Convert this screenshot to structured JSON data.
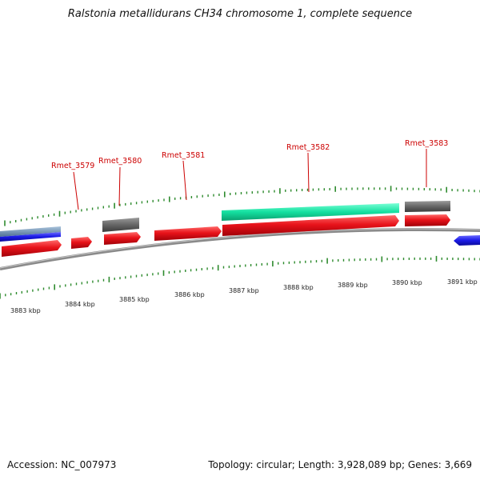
{
  "title": "Ralstonia metallidurans CH34 chromosome 1, complete sequence",
  "footer": {
    "accession": "Accession: NC_007973",
    "summary": "Topology: circular; Length: 3,928,089 bp; Genes: 3,669"
  },
  "colors": {
    "gene_forward": "#e8131a",
    "gene_reverse": "#1a1ae6",
    "cds_grey": "#6b6b6b",
    "cds_green": "#14e0a0",
    "backbone": "#8a8a8a",
    "tick": "#2e8b2e",
    "label": "#cc0000"
  },
  "gene_labels": [
    "Rmet_3579",
    "Rmet_3580",
    "Rmet_3581",
    "Rmet_3582",
    "Rmet_3583"
  ],
  "axis_labels": [
    "3883 kbp",
    "3884 kbp",
    "3885 kbp",
    "3886 kbp",
    "3887 kbp",
    "3888 kbp",
    "3889 kbp",
    "3890 kbp",
    "3891 kbp"
  ]
}
